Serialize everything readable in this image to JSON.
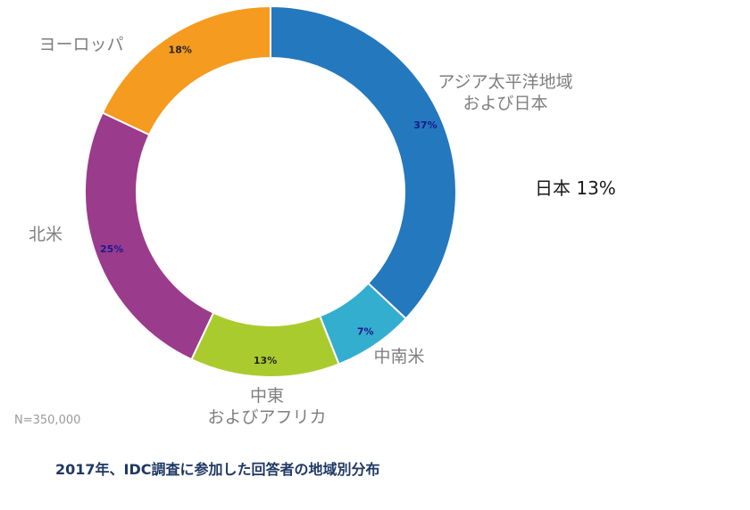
{
  "chart_data": {
    "type": "pie",
    "variant": "donut",
    "categories": [
      "アジア太平洋地域\nおよび日本",
      "中南米",
      "中東\nおよびアフリカ",
      "北米",
      "ヨーロッパ"
    ],
    "values": [
      37,
      7,
      13,
      25,
      18
    ],
    "data_labels": [
      "37%",
      "7%",
      "13%",
      "25%",
      "18%"
    ],
    "colors": [
      "#2478be",
      "#34aecf",
      "#aacb2e",
      "#9b3b8c",
      "#f59b1f"
    ],
    "data_label_colors": [
      "#1a1a8c",
      "#1a1a8c",
      "#262626",
      "#1a1a8c",
      "#262626"
    ],
    "callout": "日本 13%",
    "note": "N=350,000",
    "caption": "2017年、IDC調査に参加した回答者の地域別分布"
  }
}
